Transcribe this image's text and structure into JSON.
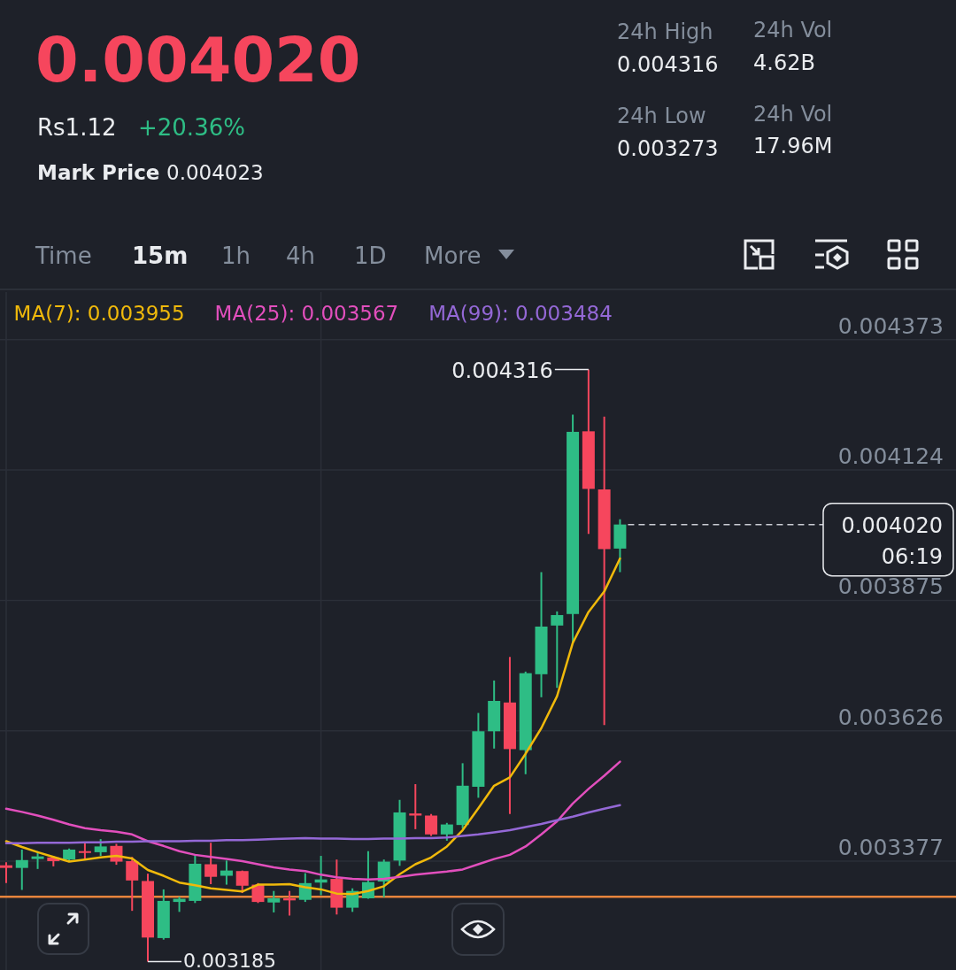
{
  "chart_data": {
    "type": "candlestick",
    "title": "0.004020",
    "annotations": [
      "Rs1.12",
      "+20.36%",
      "Mark Price",
      "0.004023",
      "24h High",
      "0.004316",
      "24h Low",
      "0.003273",
      "24h Vol",
      "4.62B",
      "24h Vol",
      "17.96M",
      "Time",
      "15m",
      "1h",
      "4h",
      "1D",
      "More",
      "0.004316",
      "0.003185"
    ],
    "categories": [
      null,
      null,
      null,
      null,
      null,
      null,
      null,
      null,
      null,
      null,
      null,
      null,
      null,
      null,
      null,
      null,
      null,
      null,
      null,
      null,
      null,
      null,
      null,
      null,
      null,
      null,
      null,
      null,
      null,
      null,
      null,
      null,
      null,
      null,
      null,
      null,
      null,
      null,
      null,
      null
    ],
    "ohlc": [
      [
        0.003369,
        0.003375,
        0.003335,
        0.003364
      ],
      [
        0.003364,
        0.003399,
        0.003322,
        0.003379
      ],
      [
        0.003381,
        0.003396,
        0.003362,
        0.003386
      ],
      [
        0.003384,
        0.003387,
        0.003367,
        0.003377
      ],
      [
        0.00338,
        0.003401,
        0.003376,
        0.003399
      ],
      [
        0.003396,
        0.003411,
        0.003382,
        0.003393
      ],
      [
        0.003394,
        0.003419,
        0.003387,
        0.003405
      ],
      [
        0.003406,
        0.00341,
        0.00337,
        0.003376
      ],
      [
        0.003377,
        0.003385,
        0.003282,
        0.00334
      ],
      [
        0.003339,
        0.003353,
        0.003185,
        0.003231
      ],
      [
        0.00323,
        0.003323,
        0.003227,
        0.003301
      ],
      [
        0.003299,
        0.003309,
        0.00328,
        0.003305
      ],
      [
        0.003301,
        0.003389,
        0.003297,
        0.003372
      ],
      [
        0.003371,
        0.003412,
        0.003333,
        0.003347
      ],
      [
        0.003349,
        0.003378,
        0.003332,
        0.003359
      ],
      [
        0.003358,
        0.003359,
        0.003316,
        0.00333
      ],
      [
        0.003332,
        0.003335,
        0.003297,
        0.003299
      ],
      [
        0.003298,
        0.00332,
        0.003279,
        0.003306
      ],
      [
        0.003306,
        0.00332,
        0.003273,
        0.003302
      ],
      [
        0.003303,
        0.003354,
        0.003299,
        0.003335
      ],
      [
        0.003336,
        0.003387,
        0.003312,
        0.003342
      ],
      [
        0.003343,
        0.00338,
        0.003275,
        0.003288
      ],
      [
        0.003288,
        0.003325,
        0.00328,
        0.00332
      ],
      [
        0.003306,
        0.003396,
        0.003305,
        0.003337
      ],
      [
        0.003338,
        0.00338,
        0.003308,
        0.003376
      ],
      [
        0.003378,
        0.003494,
        0.003368,
        0.00347
      ],
      [
        0.003468,
        0.003524,
        0.003438,
        0.003464
      ],
      [
        0.003464,
        0.003467,
        0.003425,
        0.003428
      ],
      [
        0.003428,
        0.00345,
        0.003416,
        0.003447
      ],
      [
        0.003446,
        0.003564,
        0.003439,
        0.003521
      ],
      [
        0.003519,
        0.00366,
        0.003498,
        0.003625
      ],
      [
        0.003625,
        0.003722,
        0.003592,
        0.003683
      ],
      [
        0.00368,
        0.003767,
        0.003467,
        0.003591
      ],
      [
        0.003589,
        0.003739,
        0.003543,
        0.003736
      ],
      [
        0.003734,
        0.003929,
        0.00369,
        0.003825
      ],
      [
        0.003827,
        0.003854,
        0.003708,
        0.003847
      ],
      [
        0.003849,
        0.00423,
        0.003793,
        0.004197
      ],
      [
        0.004198,
        0.004316,
        0.004002,
        0.004088
      ],
      [
        0.004087,
        0.004226,
        0.003637,
        0.003973
      ],
      [
        0.003974,
        0.00403,
        0.003929,
        0.00402
      ]
    ],
    "colors": [
      "#f6465d",
      "#2ebd85",
      "#2ebd85",
      "#f6465d",
      "#2ebd85",
      "#f6465d",
      "#2ebd85",
      "#f6465d",
      "#f6465d",
      "#f6465d",
      "#2ebd85",
      "#2ebd85",
      "#2ebd85",
      "#f6465d",
      "#2ebd85",
      "#f6465d",
      "#f6465d",
      "#2ebd85",
      "#f6465d",
      "#2ebd85",
      "#2ebd85",
      "#f6465d",
      "#2ebd85",
      "#2ebd85",
      "#2ebd85",
      "#2ebd85",
      "#f6465d",
      "#f6465d",
      "#2ebd85",
      "#2ebd85",
      "#2ebd85",
      "#2ebd85",
      "#f6465d",
      "#2ebd85",
      "#2ebd85",
      "#2ebd85",
      "#2ebd85",
      "#f6465d",
      "#f6465d",
      "#2ebd85"
    ],
    "series": [
      {
        "name": "MA(7): 0.003955",
        "type": "line",
        "color": "#f0b90b",
        "values": [
          0.003415,
          0.003404,
          0.003394,
          0.003385,
          0.003376,
          0.00338,
          0.003384,
          0.003387,
          0.003382,
          0.00336,
          0.003349,
          0.003336,
          0.003331,
          0.003325,
          0.003322,
          0.003319,
          0.003332,
          0.003332,
          0.003333,
          0.003327,
          0.003323,
          0.003315,
          0.003314,
          0.00332,
          0.003329,
          0.003352,
          0.003371,
          0.003384,
          0.003405,
          0.003436,
          0.003478,
          0.003521,
          0.003537,
          0.003582,
          0.003631,
          0.003692,
          0.003794,
          0.003853,
          0.003892,
          0.003955
        ]
      },
      {
        "name": "MA(25): 0.003567",
        "type": "line",
        "color": "#e24fbd",
        "values": [
          0.003477,
          0.003471,
          0.003464,
          0.003456,
          0.003447,
          0.00344,
          0.003436,
          0.003433,
          0.003428,
          0.003415,
          0.003406,
          0.003396,
          0.003389,
          0.003385,
          0.003381,
          0.003377,
          0.003371,
          0.003365,
          0.003361,
          0.003358,
          0.003351,
          0.003346,
          0.003343,
          0.003342,
          0.003343,
          0.003347,
          0.003351,
          0.003354,
          0.003357,
          0.003361,
          0.003371,
          0.003381,
          0.003389,
          0.003405,
          0.003428,
          0.003453,
          0.003487,
          0.003515,
          0.00354,
          0.003567
        ]
      },
      {
        "name": "MA(99): 0.003484",
        "type": "line",
        "color": "#9468d6",
        "values": [
          0.003411,
          0.003411,
          0.003412,
          0.003412,
          0.003412,
          0.003413,
          0.003413,
          0.003414,
          0.003414,
          0.003415,
          0.003415,
          0.003415,
          0.003416,
          0.003416,
          0.003417,
          0.003417,
          0.003418,
          0.003419,
          0.00342,
          0.003421,
          0.00342,
          0.00342,
          0.003419,
          0.003419,
          0.00342,
          0.00342,
          0.003421,
          0.003421,
          0.003422,
          0.003425,
          0.003428,
          0.003432,
          0.003436,
          0.003442,
          0.003448,
          0.003455,
          0.003462,
          0.00347,
          0.003477,
          0.003484
        ]
      }
    ],
    "ylim": [
      0.003169,
      0.004464
    ],
    "yticks": [
      0.003377,
      0.003626,
      0.003875,
      0.004124,
      0.004373
    ],
    "ref_lines": [
      {
        "axis": "y",
        "value": 0.00402,
        "label": "0.004020 06:19",
        "line_style": "dashed",
        "color": "#c9ccd3"
      },
      {
        "axis": "y",
        "value": 0.003309,
        "color": "#e8843c"
      }
    ],
    "grid": true,
    "legend": "top",
    "tick_labels": "y"
  }
}
